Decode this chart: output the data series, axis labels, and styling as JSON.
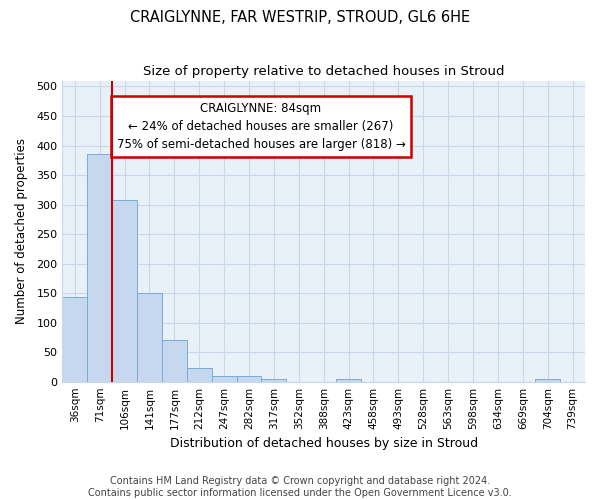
{
  "title": "CRAIGLYNNE, FAR WESTRIP, STROUD, GL6 6HE",
  "subtitle": "Size of property relative to detached houses in Stroud",
  "xlabel": "Distribution of detached houses by size in Stroud",
  "ylabel": "Number of detached properties",
  "footer1": "Contains HM Land Registry data © Crown copyright and database right 2024.",
  "footer2": "Contains public sector information licensed under the Open Government Licence v3.0.",
  "bar_labels": [
    "36sqm",
    "71sqm",
    "106sqm",
    "141sqm",
    "177sqm",
    "212sqm",
    "247sqm",
    "282sqm",
    "317sqm",
    "352sqm",
    "388sqm",
    "423sqm",
    "458sqm",
    "493sqm",
    "528sqm",
    "563sqm",
    "598sqm",
    "634sqm",
    "669sqm",
    "704sqm",
    "739sqm"
  ],
  "bar_values": [
    143,
    385,
    308,
    150,
    70,
    23,
    10,
    10,
    5,
    0,
    0,
    5,
    0,
    0,
    0,
    0,
    0,
    0,
    0,
    5,
    0
  ],
  "bar_color": "#c5d8ef",
  "bar_edge_color": "#7aadd4",
  "annotation_text_line1": "CRAIGLYNNE: 84sqm",
  "annotation_text_line2": "← 24% of detached houses are smaller (267)",
  "annotation_text_line3": "75% of semi-detached houses are larger (818) →",
  "annotation_box_color": "#ffffff",
  "annotation_box_edge": "#cc0000",
  "red_line_color": "#cc0000",
  "ylim": [
    0,
    510
  ],
  "yticks": [
    0,
    50,
    100,
    150,
    200,
    250,
    300,
    350,
    400,
    450,
    500
  ],
  "grid_color": "#c8d8e8",
  "bg_color": "#e8f0f8",
  "title_fontsize": 10.5,
  "subtitle_fontsize": 9.5,
  "footer_fontsize": 7
}
